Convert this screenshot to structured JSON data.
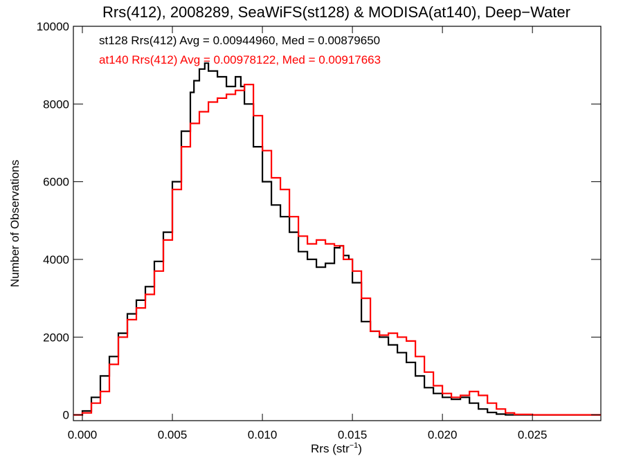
{
  "chart_data": {
    "type": "line",
    "title": "Rrs(412), 2008289, SeaWiFS(st128) & MODISA(at140), Deep−Water",
    "xlabel_main": "Rrs (str",
    "xlabel_sup": "−1",
    "xlabel_close": ")",
    "ylabel": "Number of Observations",
    "xlim": [
      -0.0005,
      0.0288
    ],
    "ylim": [
      -150,
      10000
    ],
    "x_ticks": [
      0.0,
      0.005,
      0.01,
      0.015,
      0.02,
      0.025
    ],
    "x_tick_labels": [
      "0.000",
      "0.005",
      "0.010",
      "0.015",
      "0.020",
      "0.025"
    ],
    "y_ticks": [
      0,
      2000,
      4000,
      6000,
      8000,
      10000
    ],
    "y_tick_labels": [
      "0",
      "2000",
      "4000",
      "6000",
      "8000",
      "10000"
    ],
    "grid": false,
    "annotations": [
      {
        "text": "st128 Rrs(412) Avg = 0.00944960, Med = 0.00879650",
        "color": "#000000"
      },
      {
        "text": "at140 Rrs(412) Avg = 0.00978122, Med = 0.00917663",
        "color": "#ff0000"
      }
    ],
    "series": [
      {
        "color": "#000000",
        "x": [
          -0.0005,
          0.0,
          0.0005,
          0.001,
          0.0015,
          0.002,
          0.0025,
          0.003,
          0.0035,
          0.004,
          0.0045,
          0.005,
          0.0055,
          0.006,
          0.0062,
          0.0065,
          0.0068,
          0.007,
          0.0075,
          0.008,
          0.0085,
          0.0088,
          0.009,
          0.0095,
          0.01,
          0.0105,
          0.011,
          0.0115,
          0.012,
          0.0125,
          0.013,
          0.0135,
          0.014,
          0.0143,
          0.0145,
          0.0148,
          0.015,
          0.0155,
          0.016,
          0.0165,
          0.017,
          0.0175,
          0.018,
          0.0185,
          0.019,
          0.0195,
          0.02,
          0.0205,
          0.021,
          0.0215,
          0.022,
          0.0225,
          0.023,
          0.0235,
          0.024,
          0.025,
          0.026,
          0.027,
          0.0288
        ],
        "y": [
          0,
          100,
          450,
          1000,
          1500,
          2100,
          2600,
          2950,
          3300,
          3950,
          4700,
          6000,
          7300,
          8300,
          8600,
          8900,
          9050,
          8850,
          8700,
          8450,
          8700,
          8450,
          8000,
          6900,
          6000,
          5400,
          5100,
          4700,
          4200,
          4000,
          3800,
          3900,
          4300,
          4350,
          4100,
          4000,
          3400,
          2400,
          2150,
          2000,
          1800,
          1600,
          1350,
          1000,
          700,
          550,
          450,
          400,
          450,
          300,
          150,
          60,
          20,
          0,
          0,
          0,
          0,
          0,
          0
        ]
      },
      {
        "color": "#ff0000",
        "x": [
          -0.0005,
          0.0,
          0.0005,
          0.001,
          0.0015,
          0.002,
          0.0025,
          0.003,
          0.0035,
          0.004,
          0.0045,
          0.005,
          0.0055,
          0.006,
          0.0065,
          0.007,
          0.0075,
          0.008,
          0.0085,
          0.009,
          0.0095,
          0.01,
          0.0105,
          0.011,
          0.0115,
          0.012,
          0.0125,
          0.013,
          0.0135,
          0.014,
          0.0145,
          0.015,
          0.0155,
          0.016,
          0.0165,
          0.017,
          0.0175,
          0.018,
          0.0185,
          0.019,
          0.0195,
          0.02,
          0.0205,
          0.021,
          0.0215,
          0.022,
          0.0225,
          0.023,
          0.0235,
          0.024,
          0.025,
          0.026,
          0.027,
          0.0288
        ],
        "y": [
          0,
          50,
          300,
          600,
          1300,
          2000,
          2450,
          2750,
          3100,
          3700,
          4500,
          5800,
          6900,
          7500,
          7800,
          8050,
          8150,
          8250,
          8350,
          8500,
          7700,
          6800,
          6100,
          5800,
          5100,
          4600,
          4400,
          4500,
          4400,
          4350,
          4000,
          3700,
          3000,
          2150,
          2050,
          2100,
          2000,
          1900,
          1500,
          1100,
          750,
          550,
          450,
          500,
          600,
          500,
          300,
          150,
          50,
          10,
          0,
          0,
          0,
          0
        ]
      }
    ]
  }
}
